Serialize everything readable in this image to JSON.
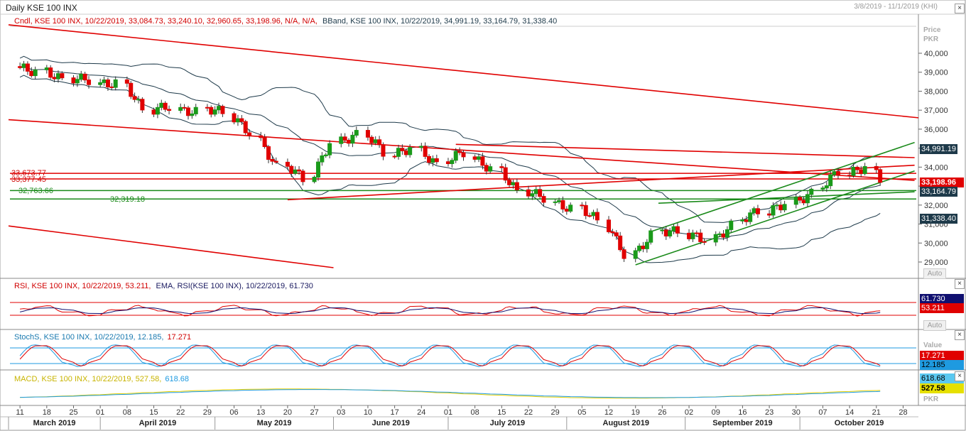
{
  "header": {
    "title": "Daily KSE 100 INX",
    "date_range": "3/8/2019 - 11/1/2019 (KHI)"
  },
  "price_panel": {
    "legend_cndl": "Cndl, KSE 100 INX, 10/22/2019, 33,084.73, 33,240.10, 32,960.65, 33,198.96, N/A, N/A,",
    "legend_bband": "BBand, KSE 100 INX, 10/22/2019, 34,991.19, 33,164.79, 31,338.40",
    "axis_unit_1": "Price",
    "axis_unit_2": "PKR",
    "auto": "Auto",
    "level_labels": [
      "33,673.77",
      "33,377.45",
      "32,763.66",
      "32,319.18"
    ],
    "tags": {
      "bb_upper": "34,991.19",
      "last": "33,198.96",
      "bb_mid": "33,164.79",
      "bb_low": "31,338.40"
    },
    "colors": {
      "up": "#1a9a1a",
      "down": "#e00000",
      "band": "#1e3a4a",
      "red_line": "#e00000",
      "green_line": "#1a8a1a"
    }
  },
  "rsi_panel": {
    "legend_rsi": "RSI, KSE 100 INX, 10/22/2019, 53.211,",
    "legend_ema": "EMA, RSI(KSE 100 INX), 10/22/2019, 61.730",
    "tag_ema": "61.730",
    "tag_rsi": "53.211",
    "auto": "Auto"
  },
  "stoch_panel": {
    "legend_main": "StochS, KSE 100 INX, 10/22/2019, 12.185,",
    "legend_slow": "17.271",
    "axis_unit": "Value",
    "tag_slow": "17.271",
    "tag_fast": "12.185"
  },
  "macd_panel": {
    "legend_main": "MACD, KSE 100 INX, 10/22/2019, 527.58,",
    "legend_signal": "618.68",
    "tag_signal": "618.68",
    "tag_macd": "527.58",
    "axis_unit": "PKR"
  },
  "chart_data": {
    "type": "candlestick",
    "title": "Daily KSE 100 INX",
    "y_ticks": [
      29000,
      30000,
      31000,
      32000,
      33000,
      34000,
      35000,
      36000,
      37000,
      38000,
      39000,
      40000
    ],
    "y_tick_labels": [
      "29,000",
      "30,000",
      "31,000",
      "32,000",
      "33,000",
      "34,000",
      "35,000",
      "36,000",
      "37,000",
      "38,000",
      "39,000",
      "40,000"
    ],
    "ylim": [
      28500,
      41300
    ],
    "x_tick_days": [
      "11",
      "18",
      "25",
      "01",
      "08",
      "15",
      "22",
      "29",
      "06",
      "13",
      "20",
      "27",
      "03",
      "10",
      "17",
      "24",
      "01",
      "08",
      "15",
      "22",
      "29",
      "05",
      "12",
      "19",
      "26",
      "02",
      "09",
      "16",
      "23",
      "30",
      "07",
      "14",
      "21",
      "28"
    ],
    "x_tick_dates": [
      "2019-03-11",
      "2019-03-18",
      "2019-03-25",
      "2019-04-01",
      "2019-04-08",
      "2019-04-15",
      "2019-04-22",
      "2019-04-29",
      "2019-05-06",
      "2019-05-13",
      "2019-05-20",
      "2019-05-27",
      "2019-06-03",
      "2019-06-10",
      "2019-06-17",
      "2019-06-24",
      "2019-07-01",
      "2019-07-08",
      "2019-07-15",
      "2019-07-22",
      "2019-07-29",
      "2019-08-05",
      "2019-08-12",
      "2019-08-19",
      "2019-08-26",
      "2019-09-02",
      "2019-09-09",
      "2019-09-16",
      "2019-09-23",
      "2019-09-30",
      "2019-10-07",
      "2019-10-14",
      "2019-10-21",
      "2019-10-28"
    ],
    "months": [
      {
        "label": "March 2019",
        "start": "2019-03-08"
      },
      {
        "label": "April 2019",
        "start": "2019-04-01"
      },
      {
        "label": "May 2019",
        "start": "2019-05-01"
      },
      {
        "label": "June 2019",
        "start": "2019-06-01"
      },
      {
        "label": "July 2019",
        "start": "2019-07-01"
      },
      {
        "label": "August 2019",
        "start": "2019-08-01"
      },
      {
        "label": "September 2019",
        "start": "2019-09-01"
      },
      {
        "label": "October 2019",
        "start": "2019-10-01"
      }
    ],
    "weekly_closes": [
      {
        "week": "2019-03-11",
        "close": 39000
      },
      {
        "week": "2019-03-18",
        "close": 38600
      },
      {
        "week": "2019-03-25",
        "close": 38600
      },
      {
        "week": "2019-04-01",
        "close": 38400
      },
      {
        "week": "2019-04-08",
        "close": 37000
      },
      {
        "week": "2019-04-15",
        "close": 37200
      },
      {
        "week": "2019-04-22",
        "close": 36900
      },
      {
        "week": "2019-04-29",
        "close": 36900
      },
      {
        "week": "2019-05-06",
        "close": 35800
      },
      {
        "week": "2019-05-13",
        "close": 34000
      },
      {
        "week": "2019-05-20",
        "close": 33400
      },
      {
        "week": "2019-05-27",
        "close": 35300
      },
      {
        "week": "2019-06-03",
        "close": 35700
      },
      {
        "week": "2019-06-10",
        "close": 34800
      },
      {
        "week": "2019-06-17",
        "close": 35000
      },
      {
        "week": "2019-06-24",
        "close": 34100
      },
      {
        "week": "2019-07-01",
        "close": 34800
      },
      {
        "week": "2019-07-08",
        "close": 33900
      },
      {
        "week": "2019-07-15",
        "close": 32700
      },
      {
        "week": "2019-07-22",
        "close": 32400
      },
      {
        "week": "2019-07-29",
        "close": 31800
      },
      {
        "week": "2019-08-05",
        "close": 31200
      },
      {
        "week": "2019-08-12",
        "close": 29400
      },
      {
        "week": "2019-08-19",
        "close": 30400
      },
      {
        "week": "2019-08-26",
        "close": 30600
      },
      {
        "week": "2019-09-02",
        "close": 30200
      },
      {
        "week": "2019-09-09",
        "close": 30900
      },
      {
        "week": "2019-09-16",
        "close": 31700
      },
      {
        "week": "2019-09-23",
        "close": 32100
      },
      {
        "week": "2019-09-30",
        "close": 32600
      },
      {
        "week": "2019-10-07",
        "close": 33800
      },
      {
        "week": "2019-10-14",
        "close": 34000
      },
      {
        "week": "2019-10-21",
        "close": 33199
      }
    ],
    "last_candle": {
      "date": "2019-10-22",
      "open": 33084.73,
      "high": 33240.1,
      "low": 32960.65,
      "close": 33198.96
    },
    "bollinger_last": {
      "upper": 34991.19,
      "mid": 33164.79,
      "lower": 31338.4
    },
    "horizontal_levels": [
      33673.77,
      33377.45,
      32763.66,
      32319.18
    ],
    "rsi_last": 53.211,
    "rsi_ema_last": 61.73,
    "stoch_last": {
      "k": 12.185,
      "d": 17.271
    },
    "macd_last": {
      "macd": 527.58,
      "signal": 618.68
    }
  }
}
